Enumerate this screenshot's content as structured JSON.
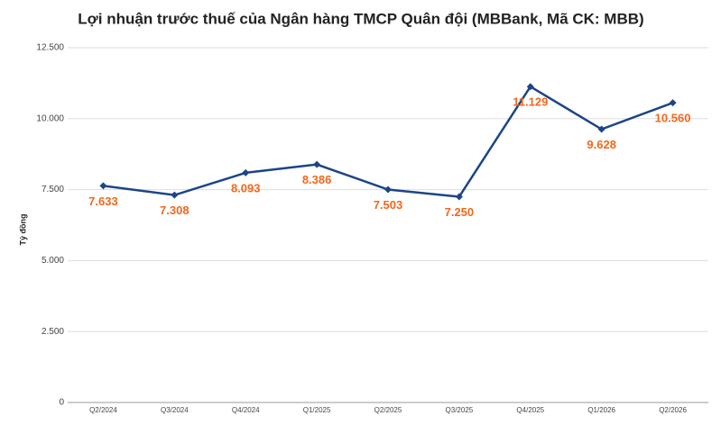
{
  "chart_data": {
    "type": "line",
    "title": "Lợi nhuận trước thuế của Ngân hàng TMCP Quân đội (MBBank, Mã CK: MBB)",
    "y_label": "Tỷ đồng",
    "categories": [
      "Q2/2024",
      "Q3/2024",
      "Q4/2024",
      "Q1/2025",
      "Q2/2025",
      "Q3/2025",
      "Q4/2025",
      "Q1/2026",
      "Q2/2026"
    ],
    "series": [
      {
        "color": "#1c4587",
        "label_color": "#f4661b",
        "values": [
          7633,
          7308,
          8093,
          8386,
          7503,
          7250,
          11129,
          9628,
          10560
        ],
        "value_labels": [
          "7.633",
          "7.308",
          "8.093",
          "8.386",
          "7.503",
          "7.250",
          "11.129",
          "9.628",
          "10.560"
        ]
      }
    ],
    "ylim": [
      0,
      12500
    ],
    "yticks": [
      0,
      {
        "value": 2500,
        "label": "2.500"
      },
      {
        "value": 5000,
        "label": "5.000"
      },
      {
        "value": 7500,
        "label": "7.500"
      },
      {
        "value": 10000,
        "label": "10.000"
      },
      {
        "value": 12500,
        "label": "12.500"
      }
    ],
    "grid": true
  }
}
